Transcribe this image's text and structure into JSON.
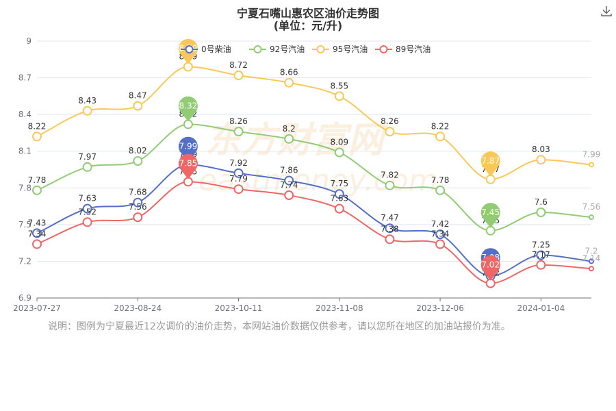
{
  "title": "宁夏石嘴山惠农区油价走势图",
  "subtitle": "(单位：元/升)",
  "watermark": "东方财富网",
  "watermark_url": "eastmoney.com",
  "note": "说明：图例为宁夏最近12次调价的油价走势，本网站油价数据仅供参考，请以您所在地区的加油站报价为准。",
  "chart_data": {
    "type": "line",
    "x_tick_labels": [
      "2023-07-27",
      "2023-08-24",
      "2023-10-11",
      "2023-11-08",
      "2023-12-06",
      "2024-01-04"
    ],
    "y_ticks": [
      6.9,
      7.2,
      7.5,
      7.8,
      8.1,
      8.4,
      8.7,
      9
    ],
    "ylim": [
      6.9,
      9
    ],
    "grid": true,
    "legend_position": "top",
    "series": [
      {
        "name": "0号柴油",
        "color": "#5470c6",
        "values": [
          7.43,
          7.63,
          7.68,
          7.99,
          7.92,
          7.86,
          7.75,
          7.47,
          7.42,
          7.08,
          7.25,
          7.2
        ],
        "max_index": 3,
        "min_index": 9
      },
      {
        "name": "92号汽油",
        "color": "#91cc75",
        "values": [
          7.78,
          7.97,
          8.02,
          8.32,
          8.26,
          8.2,
          8.09,
          7.82,
          7.78,
          7.45,
          7.6,
          7.56
        ],
        "max_index": 3,
        "min_index": 9
      },
      {
        "name": "95号汽油",
        "color": "#fac858",
        "values": [
          8.22,
          8.43,
          8.47,
          8.79,
          8.72,
          8.66,
          8.55,
          8.26,
          8.22,
          7.87,
          8.03,
          7.99
        ],
        "max_index": 3,
        "min_index": 9
      },
      {
        "name": "89号汽油",
        "color": "#ee6666",
        "values": [
          7.34,
          7.52,
          7.56,
          7.85,
          7.79,
          7.74,
          7.63,
          7.38,
          7.34,
          7.02,
          7.17,
          7.14
        ],
        "max_index": 3,
        "min_index": 9
      }
    ]
  }
}
